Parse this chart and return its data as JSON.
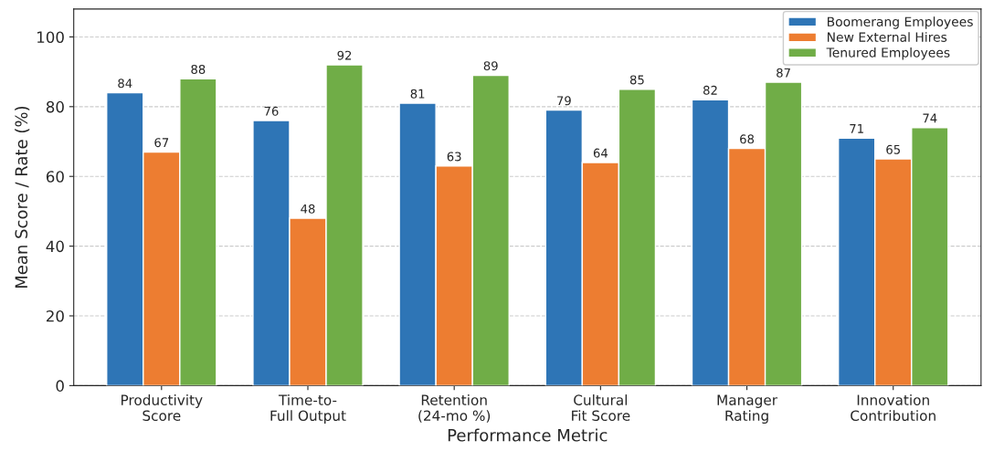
{
  "chart_data": {
    "type": "bar",
    "xlabel": "Performance Metric",
    "ylabel": "Mean Score / Rate (%)",
    "categories": [
      "Productivity\nScore",
      "Time-to-\nFull Output",
      "Retention\n(24-mo %)",
      "Cultural\nFit Score",
      "Manager\nRating",
      "Innovation\nContribution"
    ],
    "series": [
      {
        "name": "Boomerang Employees",
        "color": "#2e75b6",
        "values": [
          84,
          76,
          81,
          79,
          82,
          71
        ]
      },
      {
        "name": "New External Hires",
        "color": "#ed7d31",
        "values": [
          67,
          48,
          63,
          64,
          68,
          65
        ]
      },
      {
        "name": "Tenured Employees",
        "color": "#70ad47",
        "values": [
          88,
          92,
          89,
          85,
          87,
          74
        ]
      }
    ],
    "ylim": [
      0,
      108
    ],
    "yticks": [
      0,
      20,
      40,
      60,
      80,
      100
    ],
    "grid": "y",
    "legend": "top right",
    "data_labels": true
  }
}
